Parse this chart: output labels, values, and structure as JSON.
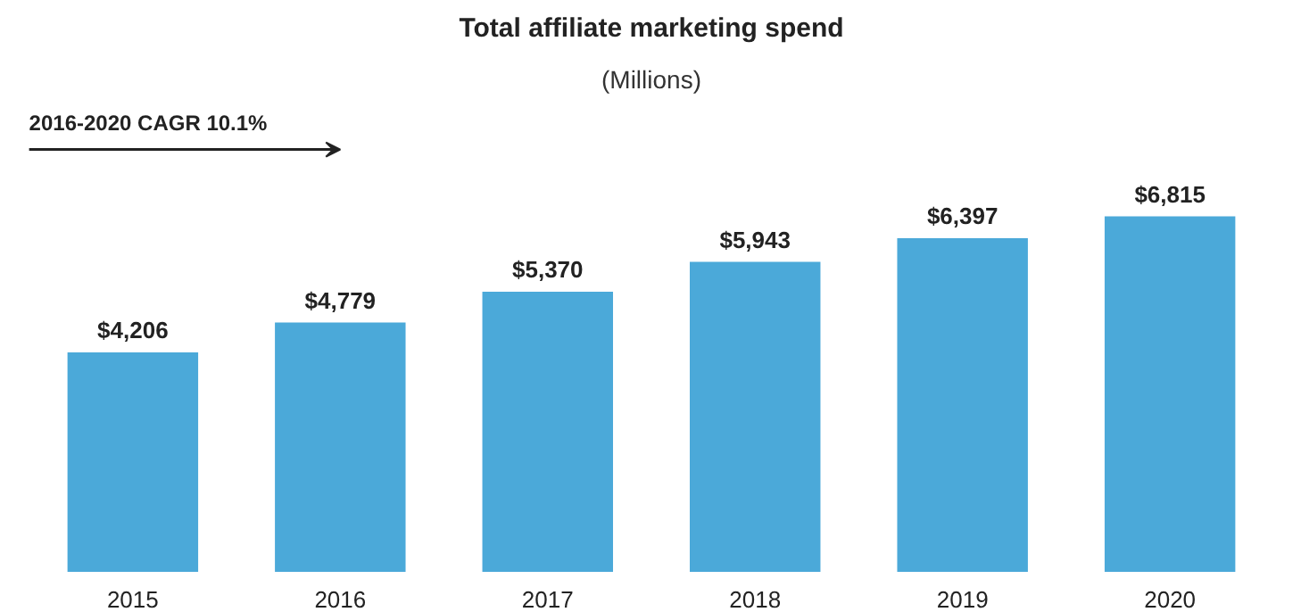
{
  "chart_data": {
    "type": "bar",
    "title": "Total affiliate marketing spend",
    "subtitle": "(Millions)",
    "categories": [
      "2015",
      "2016",
      "2017",
      "2018",
      "2019",
      "2020"
    ],
    "values": [
      4206,
      4779,
      5370,
      5943,
      6397,
      6815
    ],
    "value_labels": [
      "$4,206",
      "$4,779",
      "$5,370",
      "$5,943",
      "$6,397",
      "$6,815"
    ],
    "color": "#4ba9d9",
    "grid": false,
    "annotations": [
      "2016-2020 CAGR   10.1%"
    ]
  }
}
